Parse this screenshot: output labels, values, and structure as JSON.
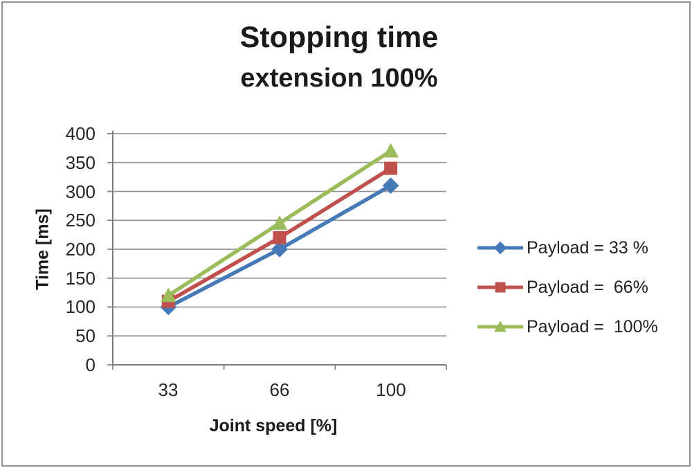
{
  "figure": {
    "title": "Stopping time",
    "subtitle": "extension 100%"
  },
  "chart_data": {
    "type": "line",
    "title": "Stopping time",
    "subtitle": "extension 100%",
    "xlabel": "Joint speed [%]",
    "ylabel": "Time [ms]",
    "categories": [
      33,
      66,
      100
    ],
    "x_tick_labels": [
      "33",
      "66",
      "100"
    ],
    "y_ticks": [
      0,
      50,
      100,
      150,
      200,
      250,
      300,
      350,
      400
    ],
    "ylim": [
      0,
      400
    ],
    "grid": true,
    "legend_position": "right",
    "colors": {
      "grid": "#969696",
      "axis": "#7f7f7f",
      "text": "#212121",
      "frame": "#909090"
    },
    "series": [
      {
        "name": "Payload = 33 %",
        "marker": "diamond",
        "color": "#4679B8",
        "values": [
          100,
          200,
          310
        ]
      },
      {
        "name": "Payload =  66%",
        "marker": "square",
        "color": "#C0504D",
        "values": [
          110,
          220,
          340
        ]
      },
      {
        "name": "Payload =  100%",
        "marker": "triangle",
        "color": "#9CBB5A",
        "values": [
          120,
          245,
          370
        ]
      }
    ]
  }
}
